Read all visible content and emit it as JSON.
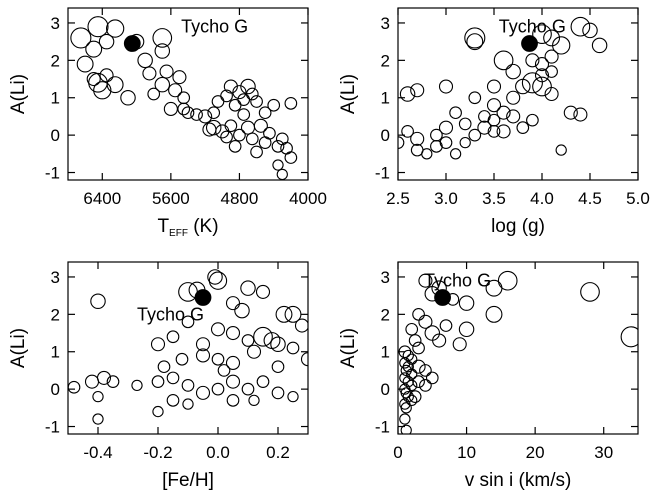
{
  "chart_data": [
    {
      "type": "scatter",
      "panel": "teff",
      "xlabel": "T",
      "xlabel_sub": "EFF",
      "xlabel_suffix": " (K)",
      "ylabel": "A(Li)",
      "xlim": [
        6800,
        4000
      ],
      "ylim": [
        -1.2,
        3.4
      ],
      "xticks": [
        6400,
        5600,
        4800,
        4000
      ],
      "yticks": [
        -1,
        0,
        1,
        2,
        3
      ],
      "annotation": {
        "text": "Tycho G",
        "x": 5480,
        "y": 2.9
      },
      "highlight": {
        "x": 6050,
        "y": 2.45,
        "r": 0.9
      },
      "points": [
        {
          "x": 6650,
          "y": 2.6,
          "r": 1.0
        },
        {
          "x": 6450,
          "y": 2.9,
          "r": 1.0
        },
        {
          "x": 6250,
          "y": 2.85,
          "r": 0.8
        },
        {
          "x": 6350,
          "y": 2.5,
          "r": 0.6
        },
        {
          "x": 6500,
          "y": 2.3,
          "r": 0.7
        },
        {
          "x": 6000,
          "y": 2.5,
          "r": 0.6
        },
        {
          "x": 5700,
          "y": 2.6,
          "r": 0.9
        },
        {
          "x": 5700,
          "y": 2.25,
          "r": 0.6
        },
        {
          "x": 5900,
          "y": 2.0,
          "r": 0.6
        },
        {
          "x": 5850,
          "y": 1.65,
          "r": 0.5
        },
        {
          "x": 6600,
          "y": 1.9,
          "r": 0.7
        },
        {
          "x": 6350,
          "y": 1.6,
          "r": 0.5
        },
        {
          "x": 6450,
          "y": 1.4,
          "r": 0.9
        },
        {
          "x": 6250,
          "y": 1.35,
          "r": 0.7
        },
        {
          "x": 6400,
          "y": 1.2,
          "r": 0.8
        },
        {
          "x": 6100,
          "y": 1.0,
          "r": 0.6
        },
        {
          "x": 6500,
          "y": 1.5,
          "r": 0.5
        },
        {
          "x": 5650,
          "y": 1.7,
          "r": 0.5
        },
        {
          "x": 5500,
          "y": 1.55,
          "r": 0.5
        },
        {
          "x": 5700,
          "y": 1.35,
          "r": 0.6
        },
        {
          "x": 5550,
          "y": 1.2,
          "r": 0.5
        },
        {
          "x": 5450,
          "y": 1.0,
          "r": 0.4
        },
        {
          "x": 5800,
          "y": 1.1,
          "r": 0.4
        },
        {
          "x": 5600,
          "y": 0.7,
          "r": 0.5
        },
        {
          "x": 5450,
          "y": 0.7,
          "r": 0.4
        },
        {
          "x": 5400,
          "y": 0.6,
          "r": 0.4
        },
        {
          "x": 5200,
          "y": 0.5,
          "r": 0.5
        },
        {
          "x": 5100,
          "y": 0.6,
          "r": 0.4
        },
        {
          "x": 5300,
          "y": 0.55,
          "r": 0.4
        },
        {
          "x": 5050,
          "y": 0.9,
          "r": 0.4
        },
        {
          "x": 4900,
          "y": 1.3,
          "r": 0.5
        },
        {
          "x": 4950,
          "y": 1.05,
          "r": 0.4
        },
        {
          "x": 4700,
          "y": 1.3,
          "r": 0.6
        },
        {
          "x": 4800,
          "y": 1.15,
          "r": 0.5
        },
        {
          "x": 4650,
          "y": 1.1,
          "r": 0.4
        },
        {
          "x": 4750,
          "y": 0.95,
          "r": 0.4
        },
        {
          "x": 4850,
          "y": 0.8,
          "r": 0.4
        },
        {
          "x": 4600,
          "y": 0.9,
          "r": 0.4
        },
        {
          "x": 4400,
          "y": 0.8,
          "r": 0.4
        },
        {
          "x": 4200,
          "y": 0.85,
          "r": 0.4
        },
        {
          "x": 5100,
          "y": 0.2,
          "r": 0.6
        },
        {
          "x": 5000,
          "y": 0.1,
          "r": 0.5
        },
        {
          "x": 4900,
          "y": 0.25,
          "r": 0.4
        },
        {
          "x": 4800,
          "y": 0.0,
          "r": 0.4
        },
        {
          "x": 4700,
          "y": 0.2,
          "r": 0.5
        },
        {
          "x": 4650,
          "y": -0.1,
          "r": 0.4
        },
        {
          "x": 4550,
          "y": 0.25,
          "r": 0.5
        },
        {
          "x": 4500,
          "y": -0.2,
          "r": 0.4
        },
        {
          "x": 4450,
          "y": 0.05,
          "r": 0.4
        },
        {
          "x": 4350,
          "y": -0.3,
          "r": 0.4
        },
        {
          "x": 4300,
          "y": -0.1,
          "r": 0.4
        },
        {
          "x": 4250,
          "y": -0.35,
          "r": 0.4
        },
        {
          "x": 4200,
          "y": -0.6,
          "r": 0.4
        },
        {
          "x": 4350,
          "y": -0.8,
          "r": 0.3
        },
        {
          "x": 4300,
          "y": -1.05,
          "r": 0.3
        },
        {
          "x": 4600,
          "y": -0.45,
          "r": 0.4
        },
        {
          "x": 4850,
          "y": -0.3,
          "r": 0.4
        },
        {
          "x": 4500,
          "y": 0.6,
          "r": 0.4
        },
        {
          "x": 4750,
          "y": 0.55,
          "r": 0.4
        },
        {
          "x": 5150,
          "y": 0.15,
          "r": 0.5
        },
        {
          "x": 4950,
          "y": -0.05,
          "r": 0.4
        }
      ]
    },
    {
      "type": "scatter",
      "panel": "logg",
      "xlabel": "log (g)",
      "ylabel": "A(Li)",
      "xlim": [
        2.5,
        5.0
      ],
      "ylim": [
        -1.2,
        3.4
      ],
      "xticks": [
        2.5,
        3.0,
        3.5,
        4.0,
        4.5,
        5.0
      ],
      "xtick_labels": [
        "2.5",
        "3.0",
        "3.5",
        "4.0",
        "4.5",
        "5.0"
      ],
      "yticks": [
        -1,
        0,
        1,
        2,
        3
      ],
      "annotation": {
        "text": "Tycho G",
        "x": 3.55,
        "y": 2.9
      },
      "highlight": {
        "x": 3.87,
        "y": 2.45,
        "r": 0.9
      },
      "points": [
        {
          "x": 3.3,
          "y": 2.6,
          "r": 1.0
        },
        {
          "x": 3.3,
          "y": 2.5,
          "r": 0.7
        },
        {
          "x": 4.0,
          "y": 2.7,
          "r": 0.9
        },
        {
          "x": 4.1,
          "y": 2.6,
          "r": 0.7
        },
        {
          "x": 4.2,
          "y": 2.4,
          "r": 0.8
        },
        {
          "x": 4.4,
          "y": 2.9,
          "r": 0.9
        },
        {
          "x": 4.5,
          "y": 2.8,
          "r": 0.6
        },
        {
          "x": 4.6,
          "y": 2.4,
          "r": 0.6
        },
        {
          "x": 3.9,
          "y": 2.0,
          "r": 0.5
        },
        {
          "x": 4.0,
          "y": 1.9,
          "r": 0.5
        },
        {
          "x": 4.1,
          "y": 2.1,
          "r": 0.5
        },
        {
          "x": 3.6,
          "y": 2.0,
          "r": 0.9
        },
        {
          "x": 3.7,
          "y": 1.7,
          "r": 0.6
        },
        {
          "x": 4.0,
          "y": 1.6,
          "r": 0.5
        },
        {
          "x": 4.1,
          "y": 1.7,
          "r": 0.4
        },
        {
          "x": 3.9,
          "y": 1.4,
          "r": 1.0
        },
        {
          "x": 4.0,
          "y": 1.3,
          "r": 0.9
        },
        {
          "x": 3.8,
          "y": 1.3,
          "r": 0.6
        },
        {
          "x": 4.1,
          "y": 1.1,
          "r": 0.5
        },
        {
          "x": 3.7,
          "y": 1.0,
          "r": 0.5
        },
        {
          "x": 3.5,
          "y": 1.3,
          "r": 0.5
        },
        {
          "x": 2.6,
          "y": 1.1,
          "r": 0.6
        },
        {
          "x": 2.7,
          "y": 1.2,
          "r": 0.5
        },
        {
          "x": 3.0,
          "y": 1.3,
          "r": 0.5
        },
        {
          "x": 3.3,
          "y": 1.0,
          "r": 0.4
        },
        {
          "x": 3.5,
          "y": 0.8,
          "r": 0.5
        },
        {
          "x": 3.6,
          "y": 0.6,
          "r": 0.5
        },
        {
          "x": 3.7,
          "y": 0.5,
          "r": 0.5
        },
        {
          "x": 3.5,
          "y": 0.4,
          "r": 0.4
        },
        {
          "x": 3.4,
          "y": 0.2,
          "r": 0.5
        },
        {
          "x": 3.5,
          "y": 0.1,
          "r": 0.4
        },
        {
          "x": 3.6,
          "y": 0.1,
          "r": 0.5
        },
        {
          "x": 3.3,
          "y": 0.0,
          "r": 0.4
        },
        {
          "x": 3.1,
          "y": 0.6,
          "r": 0.4
        },
        {
          "x": 3.0,
          "y": 0.2,
          "r": 0.5
        },
        {
          "x": 2.9,
          "y": 0.0,
          "r": 0.4
        },
        {
          "x": 2.7,
          "y": -0.1,
          "r": 0.5
        },
        {
          "x": 2.7,
          "y": -0.4,
          "r": 0.4
        },
        {
          "x": 2.6,
          "y": 0.1,
          "r": 0.4
        },
        {
          "x": 2.5,
          "y": -0.2,
          "r": 0.4
        },
        {
          "x": 2.9,
          "y": -0.3,
          "r": 0.4
        },
        {
          "x": 3.0,
          "y": -0.2,
          "r": 0.4
        },
        {
          "x": 3.2,
          "y": -0.2,
          "r": 0.3
        },
        {
          "x": 3.1,
          "y": -0.5,
          "r": 0.3
        },
        {
          "x": 2.8,
          "y": -0.5,
          "r": 0.3
        },
        {
          "x": 3.8,
          "y": 0.2,
          "r": 0.4
        },
        {
          "x": 3.9,
          "y": 0.4,
          "r": 0.4
        },
        {
          "x": 4.3,
          "y": 0.6,
          "r": 0.5
        },
        {
          "x": 4.4,
          "y": 0.55,
          "r": 0.5
        },
        {
          "x": 4.2,
          "y": -0.4,
          "r": 0.3
        },
        {
          "x": 3.4,
          "y": 0.5,
          "r": 0.4
        },
        {
          "x": 3.2,
          "y": 0.3,
          "r": 0.4
        }
      ]
    },
    {
      "type": "scatter",
      "panel": "feh",
      "xlabel": "[Fe/H]",
      "ylabel": "A(Li)",
      "xlim": [
        -0.5,
        0.3
      ],
      "ylim": [
        -1.2,
        3.4
      ],
      "xticks": [
        -0.4,
        -0.2,
        0.0,
        0.2
      ],
      "xtick_labels": [
        "-0.4",
        "-0.2",
        "0.0",
        "0.2"
      ],
      "yticks": [
        -1,
        0,
        1,
        2,
        3
      ],
      "annotation": {
        "text": "Tycho G",
        "x": -0.27,
        "y": 2.0
      },
      "highlight": {
        "x": -0.05,
        "y": 2.45,
        "r": 0.9
      },
      "points": [
        {
          "x": -0.4,
          "y": 2.35,
          "r": 0.6
        },
        {
          "x": -0.1,
          "y": 2.6,
          "r": 0.9
        },
        {
          "x": -0.07,
          "y": 2.65,
          "r": 0.7
        },
        {
          "x": 0.0,
          "y": 2.9,
          "r": 0.8
        },
        {
          "x": -0.01,
          "y": 3.0,
          "r": 0.6
        },
        {
          "x": 0.1,
          "y": 2.7,
          "r": 0.6
        },
        {
          "x": 0.15,
          "y": 2.6,
          "r": 0.5
        },
        {
          "x": 0.22,
          "y": 2.0,
          "r": 0.7
        },
        {
          "x": 0.25,
          "y": 2.0,
          "r": 0.7
        },
        {
          "x": 0.28,
          "y": 1.7,
          "r": 0.5
        },
        {
          "x": 0.05,
          "y": 2.3,
          "r": 0.5
        },
        {
          "x": 0.08,
          "y": 2.1,
          "r": 0.6
        },
        {
          "x": -0.2,
          "y": 1.2,
          "r": 0.5
        },
        {
          "x": -0.15,
          "y": 1.4,
          "r": 0.4
        },
        {
          "x": -0.1,
          "y": 1.8,
          "r": 0.4
        },
        {
          "x": -0.05,
          "y": 1.2,
          "r": 0.5
        },
        {
          "x": 0.0,
          "y": 1.6,
          "r": 0.5
        },
        {
          "x": 0.05,
          "y": 1.5,
          "r": 0.5
        },
        {
          "x": 0.1,
          "y": 1.3,
          "r": 0.4
        },
        {
          "x": 0.15,
          "y": 1.4,
          "r": 0.9
        },
        {
          "x": 0.18,
          "y": 1.3,
          "r": 0.7
        },
        {
          "x": 0.2,
          "y": 1.2,
          "r": 0.6
        },
        {
          "x": 0.25,
          "y": 1.1,
          "r": 0.4
        },
        {
          "x": 0.12,
          "y": 1.0,
          "r": 0.5
        },
        {
          "x": -0.05,
          "y": 0.9,
          "r": 0.5
        },
        {
          "x": 0.0,
          "y": 0.8,
          "r": 0.4
        },
        {
          "x": 0.05,
          "y": 0.7,
          "r": 0.5
        },
        {
          "x": -0.12,
          "y": 0.8,
          "r": 0.4
        },
        {
          "x": -0.18,
          "y": 0.6,
          "r": 0.4
        },
        {
          "x": 0.2,
          "y": 0.6,
          "r": 0.4
        },
        {
          "x": 0.3,
          "y": 0.8,
          "r": 0.5
        },
        {
          "x": -0.42,
          "y": 0.2,
          "r": 0.5
        },
        {
          "x": -0.38,
          "y": 0.3,
          "r": 0.5
        },
        {
          "x": -0.35,
          "y": 0.2,
          "r": 0.4
        },
        {
          "x": -0.48,
          "y": 0.05,
          "r": 0.4
        },
        {
          "x": -0.4,
          "y": -0.2,
          "r": 0.3
        },
        {
          "x": -0.27,
          "y": 0.1,
          "r": 0.3
        },
        {
          "x": -0.2,
          "y": 0.2,
          "r": 0.4
        },
        {
          "x": -0.15,
          "y": 0.3,
          "r": 0.4
        },
        {
          "x": -0.1,
          "y": 0.1,
          "r": 0.4
        },
        {
          "x": -0.05,
          "y": -0.1,
          "r": 0.5
        },
        {
          "x": 0.0,
          "y": 0.0,
          "r": 0.4
        },
        {
          "x": 0.05,
          "y": 0.2,
          "r": 0.5
        },
        {
          "x": 0.1,
          "y": 0.0,
          "r": 0.4
        },
        {
          "x": 0.15,
          "y": 0.2,
          "r": 0.4
        },
        {
          "x": 0.2,
          "y": -0.1,
          "r": 0.4
        },
        {
          "x": 0.25,
          "y": -0.2,
          "r": 0.3
        },
        {
          "x": -0.15,
          "y": -0.3,
          "r": 0.4
        },
        {
          "x": -0.1,
          "y": -0.4,
          "r": 0.3
        },
        {
          "x": 0.05,
          "y": -0.3,
          "r": 0.4
        },
        {
          "x": 0.12,
          "y": -0.3,
          "r": 0.3
        },
        {
          "x": -0.2,
          "y": -0.6,
          "r": 0.3
        },
        {
          "x": -0.4,
          "y": -0.8,
          "r": 0.3
        },
        {
          "x": 0.02,
          "y": 0.5,
          "r": 0.4
        }
      ]
    },
    {
      "type": "scatter",
      "panel": "vsini",
      "xlabel": "v sin i (km/s)",
      "ylabel": "A(Li)",
      "xlim": [
        0,
        35
      ],
      "ylim": [
        -1.2,
        3.4
      ],
      "xticks": [
        0,
        10,
        20,
        30
      ],
      "xtick_labels": [
        "0",
        "10",
        "20",
        "30"
      ],
      "yticks": [
        -1,
        0,
        1,
        2,
        3
      ],
      "annotation": {
        "text": "Tycho G",
        "x": 3.8,
        "y": 2.9
      },
      "highlight": {
        "x": 6.5,
        "y": 2.45,
        "r": 0.9
      },
      "points": [
        {
          "x": 16,
          "y": 2.9,
          "r": 0.9
        },
        {
          "x": 28,
          "y": 2.6,
          "r": 0.9
        },
        {
          "x": 34,
          "y": 1.4,
          "r": 1.0
        },
        {
          "x": 14,
          "y": 2.7,
          "r": 0.7
        },
        {
          "x": 14,
          "y": 2.0,
          "r": 0.7
        },
        {
          "x": 10,
          "y": 2.3,
          "r": 0.6
        },
        {
          "x": 10,
          "y": 1.6,
          "r": 0.6
        },
        {
          "x": 9,
          "y": 1.2,
          "r": 0.5
        },
        {
          "x": 6,
          "y": 2.7,
          "r": 0.6
        },
        {
          "x": 5,
          "y": 2.55,
          "r": 0.6
        },
        {
          "x": 4,
          "y": 2.9,
          "r": 0.5
        },
        {
          "x": 3,
          "y": 2.0,
          "r": 0.4
        },
        {
          "x": 4,
          "y": 1.8,
          "r": 0.5
        },
        {
          "x": 5,
          "y": 1.5,
          "r": 0.6
        },
        {
          "x": 6,
          "y": 1.3,
          "r": 0.5
        },
        {
          "x": 7,
          "y": 1.7,
          "r": 0.4
        },
        {
          "x": 2,
          "y": 1.6,
          "r": 0.4
        },
        {
          "x": 2.5,
          "y": 1.3,
          "r": 0.4
        },
        {
          "x": 3,
          "y": 1.1,
          "r": 0.4
        },
        {
          "x": 1,
          "y": 1.0,
          "r": 0.4
        },
        {
          "x": 1.5,
          "y": 0.9,
          "r": 0.3
        },
        {
          "x": 2,
          "y": 0.8,
          "r": 0.3
        },
        {
          "x": 1,
          "y": 0.7,
          "r": 0.3
        },
        {
          "x": 1.2,
          "y": 0.5,
          "r": 0.3
        },
        {
          "x": 3,
          "y": 0.6,
          "r": 0.5
        },
        {
          "x": 4,
          "y": 0.5,
          "r": 0.4
        },
        {
          "x": 5,
          "y": 0.3,
          "r": 0.4
        },
        {
          "x": 1,
          "y": 0.3,
          "r": 0.3
        },
        {
          "x": 1.5,
          "y": 0.2,
          "r": 0.3
        },
        {
          "x": 2,
          "y": 0.1,
          "r": 0.3
        },
        {
          "x": 1,
          "y": 0.0,
          "r": 0.3
        },
        {
          "x": 1.2,
          "y": -0.1,
          "r": 0.3
        },
        {
          "x": 1.5,
          "y": -0.2,
          "r": 0.3
        },
        {
          "x": 2,
          "y": -0.3,
          "r": 0.3
        },
        {
          "x": 1,
          "y": -0.4,
          "r": 0.3
        },
        {
          "x": 1.2,
          "y": -0.5,
          "r": 0.3
        },
        {
          "x": 2.5,
          "y": -0.2,
          "r": 0.4
        },
        {
          "x": 3,
          "y": 0.2,
          "r": 0.4
        },
        {
          "x": 4,
          "y": 0.1,
          "r": 0.4
        },
        {
          "x": 1,
          "y": -0.8,
          "r": 0.3
        },
        {
          "x": 1.2,
          "y": -1.1,
          "r": 0.3
        },
        {
          "x": 2,
          "y": 0.4,
          "r": 0.3
        },
        {
          "x": 1.5,
          "y": 0.6,
          "r": 0.3
        },
        {
          "x": 8,
          "y": 2.4,
          "r": 0.4
        }
      ]
    }
  ]
}
